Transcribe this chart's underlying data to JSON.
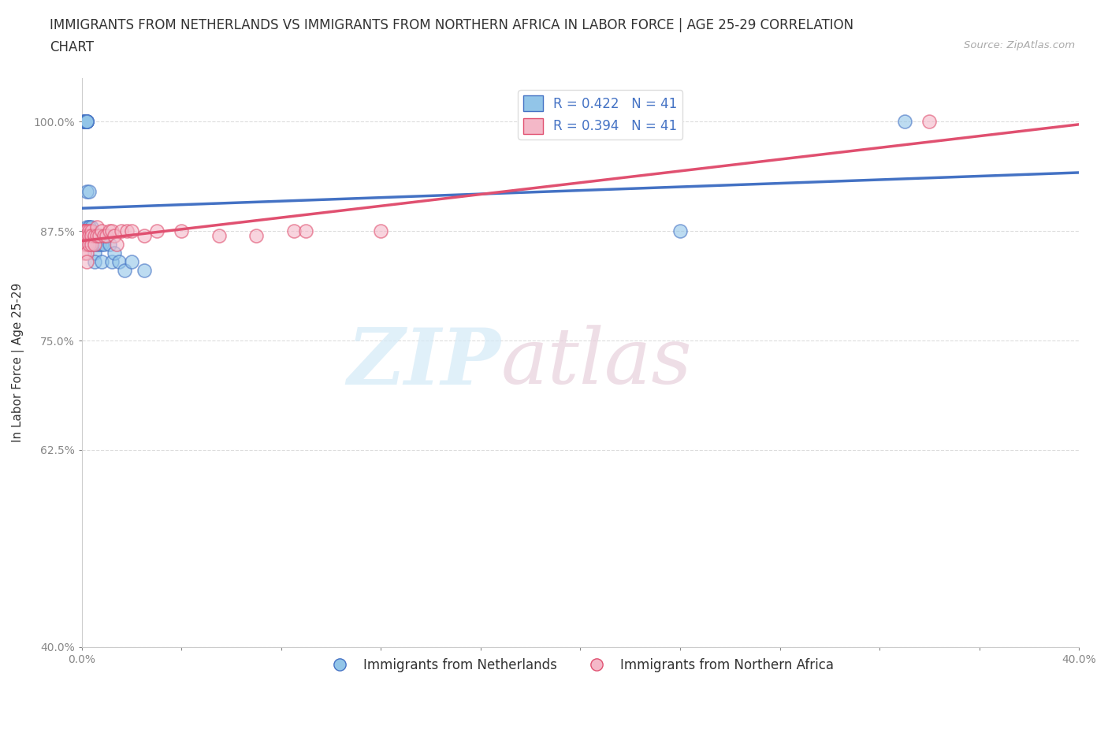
{
  "title_line1": "IMMIGRANTS FROM NETHERLANDS VS IMMIGRANTS FROM NORTHERN AFRICA IN LABOR FORCE | AGE 25-29 CORRELATION",
  "title_line2": "CHART",
  "source_text": "Source: ZipAtlas.com",
  "xlabel": "",
  "ylabel": "In Labor Force | Age 25-29",
  "xlim": [
    0.0,
    0.4
  ],
  "ylim": [
    0.4,
    1.05
  ],
  "xticks": [
    0.0,
    0.04,
    0.08,
    0.12,
    0.16,
    0.2,
    0.24,
    0.28,
    0.32,
    0.36,
    0.4
  ],
  "xticklabels": [
    "0.0%",
    "",
    "",
    "",
    "",
    "",
    "",
    "",
    "",
    "",
    "40.0%"
  ],
  "yticks": [
    0.4,
    0.625,
    0.75,
    0.875,
    1.0
  ],
  "yticklabels": [
    "40.0%",
    "62.5%",
    "75.0%",
    "87.5%",
    "100.0%"
  ],
  "blue_color": "#92C5E8",
  "pink_color": "#F4B8C8",
  "blue_line_color": "#4472C4",
  "pink_line_color": "#E05070",
  "legend_blue_label": "R = 0.422   N = 41",
  "legend_pink_label": "R = 0.394   N = 41",
  "legend_netherlands": "Immigrants from Netherlands",
  "legend_n_africa": "Immigrants from Northern Africa",
  "blue_x": [
    0.001,
    0.001,
    0.001,
    0.001,
    0.001,
    0.002,
    0.002,
    0.002,
    0.002,
    0.002,
    0.002,
    0.002,
    0.002,
    0.003,
    0.003,
    0.003,
    0.003,
    0.003,
    0.004,
    0.004,
    0.005,
    0.005,
    0.005,
    0.005,
    0.006,
    0.006,
    0.007,
    0.007,
    0.008,
    0.008,
    0.009,
    0.01,
    0.011,
    0.012,
    0.013,
    0.015,
    0.017,
    0.02,
    0.025,
    0.24,
    0.33
  ],
  "blue_y": [
    1.0,
    1.0,
    1.0,
    1.0,
    1.0,
    1.0,
    1.0,
    1.0,
    1.0,
    1.0,
    1.0,
    0.92,
    0.88,
    0.92,
    0.88,
    0.88,
    0.87,
    0.86,
    0.88,
    0.86,
    0.87,
    0.86,
    0.85,
    0.84,
    0.87,
    0.86,
    0.87,
    0.86,
    0.86,
    0.84,
    0.86,
    0.87,
    0.86,
    0.84,
    0.85,
    0.84,
    0.83,
    0.84,
    0.83,
    0.875,
    1.0
  ],
  "pink_x": [
    0.001,
    0.001,
    0.001,
    0.001,
    0.001,
    0.001,
    0.002,
    0.002,
    0.002,
    0.002,
    0.002,
    0.003,
    0.003,
    0.003,
    0.004,
    0.004,
    0.004,
    0.005,
    0.005,
    0.006,
    0.006,
    0.007,
    0.008,
    0.009,
    0.01,
    0.011,
    0.012,
    0.013,
    0.014,
    0.016,
    0.018,
    0.02,
    0.025,
    0.03,
    0.04,
    0.055,
    0.07,
    0.085,
    0.09,
    0.12,
    0.34
  ],
  "pink_y": [
    0.875,
    0.875,
    0.875,
    0.87,
    0.86,
    0.85,
    0.875,
    0.87,
    0.86,
    0.85,
    0.84,
    0.875,
    0.87,
    0.86,
    0.875,
    0.87,
    0.86,
    0.87,
    0.86,
    0.88,
    0.87,
    0.87,
    0.875,
    0.87,
    0.87,
    0.875,
    0.875,
    0.87,
    0.86,
    0.875,
    0.875,
    0.875,
    0.87,
    0.875,
    0.875,
    0.87,
    0.87,
    0.875,
    0.875,
    0.875,
    1.0
  ],
  "grid_color": "#dddddd",
  "bg_color": "#ffffff",
  "title_fontsize": 12,
  "axis_label_fontsize": 11,
  "tick_fontsize": 10,
  "legend_fontsize": 12
}
